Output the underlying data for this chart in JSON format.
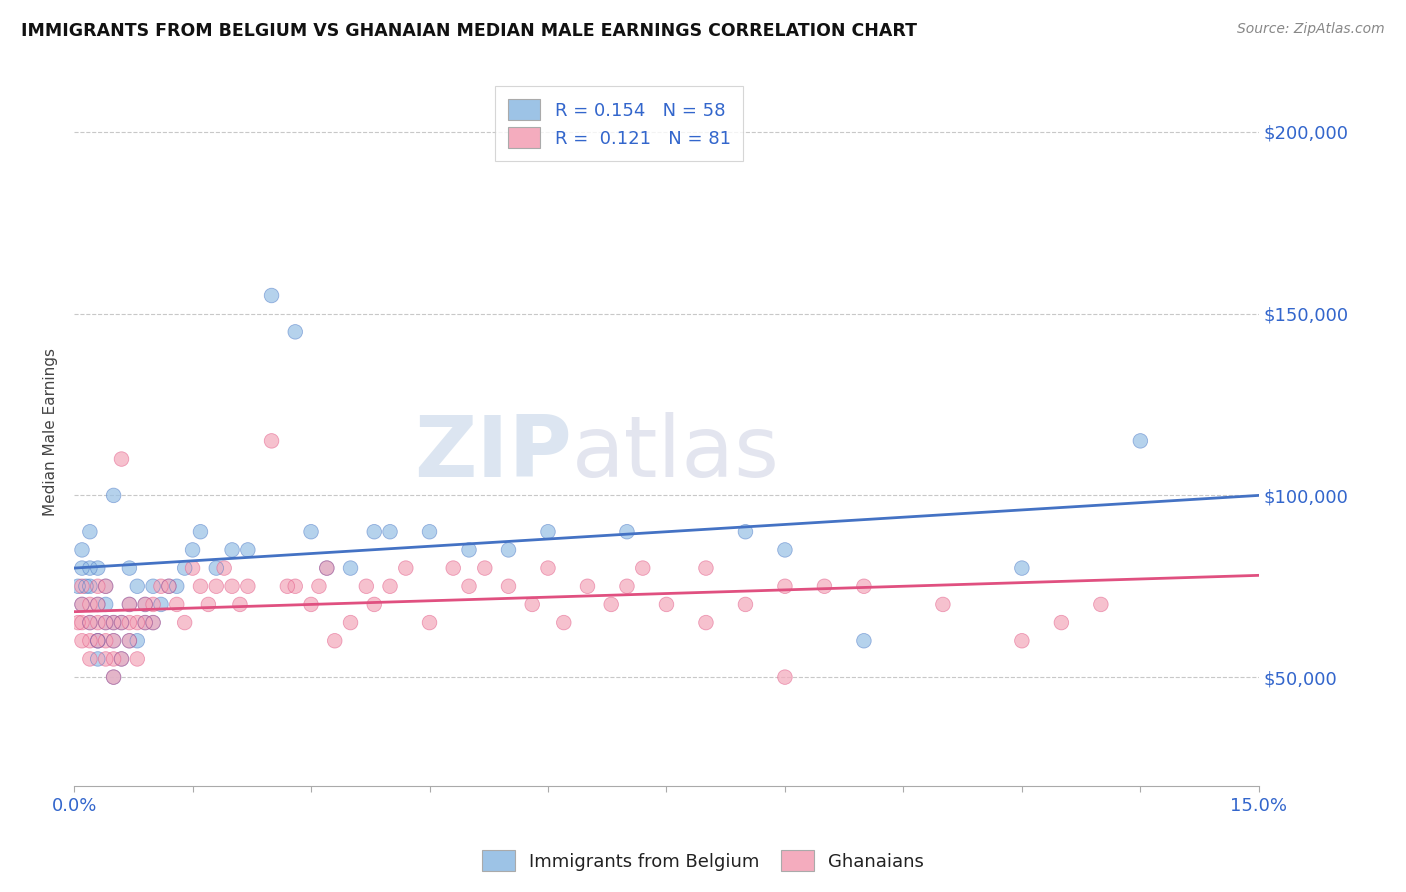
{
  "title": "IMMIGRANTS FROM BELGIUM VS GHANAIAN MEDIAN MALE EARNINGS CORRELATION CHART",
  "source": "Source: ZipAtlas.com",
  "ylabel": "Median Male Earnings",
  "xlim": [
    0.0,
    0.15
  ],
  "ylim": [
    20000,
    215000
  ],
  "xticks": [
    0.0,
    0.015,
    0.03,
    0.045,
    0.06,
    0.075,
    0.09,
    0.105,
    0.12,
    0.135,
    0.15
  ],
  "xtick_labels": [
    "0.0%",
    "",
    "",
    "",
    "",
    "",
    "",
    "",
    "",
    "",
    "15.0%"
  ],
  "ytick_positions": [
    50000,
    100000,
    150000,
    200000
  ],
  "ytick_labels": [
    "$50,000",
    "$100,000",
    "$150,000",
    "$200,000"
  ],
  "watermark_zip": "ZIP",
  "watermark_atlas": "atlas",
  "blue_color": "#4472c4",
  "pink_color": "#e05080",
  "blue_fill": "#9dc3e6",
  "pink_fill": "#f4acbe",
  "legend_label_blue": "R = 0.154   N = 58",
  "legend_label_pink": "R =  0.121   N = 81",
  "bottom_legend_blue": "Immigrants from Belgium",
  "bottom_legend_pink": "Ghanaians",
  "blue_trend_y0": 80000,
  "blue_trend_y1": 100000,
  "pink_trend_y0": 68000,
  "pink_trend_y1": 78000,
  "blue_scatter_x": [
    0.0005,
    0.001,
    0.001,
    0.001,
    0.0015,
    0.002,
    0.002,
    0.002,
    0.002,
    0.003,
    0.003,
    0.003,
    0.003,
    0.003,
    0.004,
    0.004,
    0.004,
    0.005,
    0.005,
    0.005,
    0.005,
    0.006,
    0.006,
    0.007,
    0.007,
    0.007,
    0.008,
    0.008,
    0.009,
    0.009,
    0.01,
    0.01,
    0.011,
    0.012,
    0.013,
    0.014,
    0.015,
    0.016,
    0.018,
    0.02,
    0.022,
    0.025,
    0.028,
    0.03,
    0.032,
    0.035,
    0.038,
    0.04,
    0.045,
    0.05,
    0.055,
    0.06,
    0.07,
    0.085,
    0.09,
    0.1,
    0.12,
    0.135
  ],
  "blue_scatter_y": [
    75000,
    80000,
    85000,
    70000,
    75000,
    65000,
    75000,
    80000,
    90000,
    60000,
    70000,
    80000,
    60000,
    55000,
    65000,
    75000,
    70000,
    50000,
    60000,
    65000,
    100000,
    55000,
    65000,
    70000,
    80000,
    60000,
    60000,
    75000,
    65000,
    70000,
    75000,
    65000,
    70000,
    75000,
    75000,
    80000,
    85000,
    90000,
    80000,
    85000,
    85000,
    155000,
    145000,
    90000,
    80000,
    80000,
    90000,
    90000,
    90000,
    85000,
    85000,
    90000,
    90000,
    90000,
    85000,
    60000,
    80000,
    115000
  ],
  "pink_scatter_x": [
    0.0005,
    0.001,
    0.001,
    0.001,
    0.001,
    0.002,
    0.002,
    0.002,
    0.002,
    0.003,
    0.003,
    0.003,
    0.003,
    0.004,
    0.004,
    0.004,
    0.004,
    0.005,
    0.005,
    0.005,
    0.005,
    0.006,
    0.006,
    0.006,
    0.007,
    0.007,
    0.007,
    0.008,
    0.008,
    0.009,
    0.009,
    0.01,
    0.01,
    0.011,
    0.012,
    0.013,
    0.014,
    0.015,
    0.016,
    0.017,
    0.018,
    0.019,
    0.02,
    0.021,
    0.022,
    0.025,
    0.027,
    0.028,
    0.03,
    0.031,
    0.032,
    0.033,
    0.035,
    0.037,
    0.038,
    0.04,
    0.042,
    0.045,
    0.048,
    0.05,
    0.052,
    0.055,
    0.058,
    0.06,
    0.062,
    0.065,
    0.068,
    0.07,
    0.072,
    0.075,
    0.08,
    0.085,
    0.09,
    0.1,
    0.11,
    0.12,
    0.125,
    0.13,
    0.09,
    0.095,
    0.08
  ],
  "pink_scatter_y": [
    65000,
    60000,
    65000,
    70000,
    75000,
    55000,
    60000,
    65000,
    70000,
    60000,
    65000,
    70000,
    75000,
    55000,
    60000,
    65000,
    75000,
    50000,
    55000,
    60000,
    65000,
    55000,
    65000,
    110000,
    60000,
    65000,
    70000,
    55000,
    65000,
    65000,
    70000,
    65000,
    70000,
    75000,
    75000,
    70000,
    65000,
    80000,
    75000,
    70000,
    75000,
    80000,
    75000,
    70000,
    75000,
    115000,
    75000,
    75000,
    70000,
    75000,
    80000,
    60000,
    65000,
    75000,
    70000,
    75000,
    80000,
    65000,
    80000,
    75000,
    80000,
    75000,
    70000,
    80000,
    65000,
    75000,
    70000,
    75000,
    80000,
    70000,
    65000,
    70000,
    75000,
    75000,
    70000,
    60000,
    65000,
    70000,
    50000,
    75000,
    80000
  ]
}
